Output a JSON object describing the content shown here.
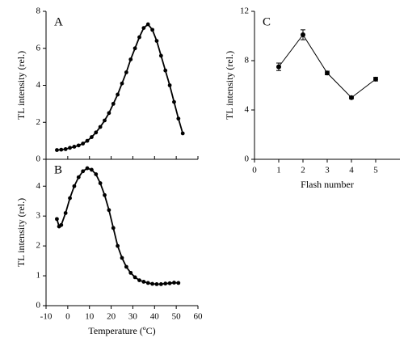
{
  "chart_data": [
    {
      "type": "scatter",
      "label": "A",
      "ylabel": "TL intensity (rel.)",
      "x": [
        -5,
        -3,
        -1,
        1,
        3,
        5,
        7,
        9,
        11,
        13,
        15,
        17,
        19,
        21,
        23,
        25,
        27,
        29,
        31,
        33,
        35,
        37,
        39,
        41,
        43,
        45,
        47,
        49,
        51,
        53
      ],
      "values": [
        0.5,
        0.52,
        0.55,
        0.62,
        0.68,
        0.75,
        0.85,
        1.0,
        1.2,
        1.45,
        1.75,
        2.1,
        2.5,
        3.0,
        3.5,
        4.1,
        4.7,
        5.4,
        6.0,
        6.6,
        7.1,
        7.3,
        7.0,
        6.4,
        5.6,
        4.8,
        4.0,
        3.1,
        2.2,
        1.4
      ],
      "color": "#000000",
      "xlim": [
        -10,
        60
      ],
      "ylim": [
        0,
        8
      ],
      "yticks": [
        0,
        2,
        4,
        6,
        8
      ]
    },
    {
      "type": "scatter",
      "label": "B",
      "ylabel": "TL intensity (rel.)",
      "xlabel": "Temperature (ºC)",
      "x": [
        -5,
        -4,
        -3,
        -1,
        1,
        3,
        5,
        7,
        9,
        11,
        13,
        15,
        17,
        19,
        21,
        23,
        25,
        27,
        29,
        31,
        33,
        35,
        37,
        39,
        41,
        43,
        45,
        47,
        49,
        51
      ],
      "values": [
        2.9,
        2.65,
        2.7,
        3.1,
        3.6,
        4.0,
        4.3,
        4.5,
        4.6,
        4.55,
        4.4,
        4.1,
        3.7,
        3.2,
        2.6,
        2.0,
        1.6,
        1.3,
        1.1,
        0.95,
        0.85,
        0.8,
        0.76,
        0.73,
        0.72,
        0.72,
        0.74,
        0.75,
        0.77,
        0.76
      ],
      "color": "#000000",
      "xlim": [
        -10,
        60
      ],
      "xticks": [
        -10,
        0,
        10,
        20,
        30,
        40,
        50,
        60
      ],
      "ylim": [
        0,
        4.9
      ],
      "yticks": [
        0,
        1,
        2,
        3,
        4
      ]
    },
    {
      "type": "line",
      "label": "C",
      "ylabel": "TL intensity (rel.)",
      "xlabel": "Flash number",
      "x": [
        1,
        2,
        3,
        4,
        5
      ],
      "values": [
        7.5,
        10.1,
        7.0,
        5.0,
        6.5
      ],
      "errors": [
        0.3,
        0.4,
        0.15,
        0.1,
        0.15
      ],
      "color": "#000000",
      "xlim": [
        0,
        6
      ],
      "xticks": [
        0,
        1,
        2,
        3,
        4,
        5
      ],
      "ylim": [
        0,
        12
      ],
      "yticks": [
        0,
        4,
        8,
        12
      ]
    }
  ]
}
